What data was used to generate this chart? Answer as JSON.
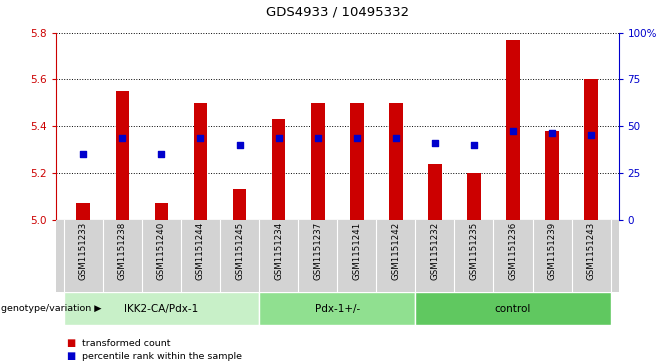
{
  "title": "GDS4933 / 10495332",
  "samples": [
    "GSM1151233",
    "GSM1151238",
    "GSM1151240",
    "GSM1151244",
    "GSM1151245",
    "GSM1151234",
    "GSM1151237",
    "GSM1151241",
    "GSM1151242",
    "GSM1151232",
    "GSM1151235",
    "GSM1151236",
    "GSM1151239",
    "GSM1151243"
  ],
  "bar_heights": [
    5.07,
    5.55,
    5.07,
    5.5,
    5.13,
    5.43,
    5.5,
    5.5,
    5.5,
    5.24,
    5.2,
    5.77,
    5.38,
    5.6
  ],
  "blue_dots": [
    5.28,
    5.35,
    5.28,
    5.35,
    5.32,
    5.35,
    5.35,
    5.35,
    5.35,
    5.33,
    5.32,
    5.38,
    5.37,
    5.36
  ],
  "bar_base": 5.0,
  "ylim_left": [
    5.0,
    5.8
  ],
  "ylim_right": [
    0,
    100
  ],
  "yticks_left": [
    5.0,
    5.2,
    5.4,
    5.6,
    5.8
  ],
  "yticks_right": [
    0,
    25,
    50,
    75,
    100
  ],
  "ytick_labels_right": [
    "0",
    "25",
    "50",
    "75",
    "100%"
  ],
  "groups": [
    {
      "label": "IKK2-CA/Pdx-1",
      "start": 0,
      "end": 5,
      "color": "#c8f0c8"
    },
    {
      "label": "Pdx-1+/-",
      "start": 5,
      "end": 9,
      "color": "#90e090"
    },
    {
      "label": "control",
      "start": 9,
      "end": 14,
      "color": "#60c860"
    }
  ],
  "bar_color": "#cc0000",
  "dot_color": "#0000cc",
  "bg_color": "#ffffff",
  "plot_bg": "#ffffff",
  "axis_color_left": "#cc0000",
  "axis_color_right": "#0000cc",
  "grid_color": "#000000",
  "label_row_bg": "#d3d3d3",
  "genotype_label": "genotype/variation",
  "legend_items": [
    {
      "label": "transformed count",
      "color": "#cc0000"
    },
    {
      "label": "percentile rank within the sample",
      "color": "#0000cc"
    }
  ],
  "bar_width": 0.35,
  "dot_size": 18
}
